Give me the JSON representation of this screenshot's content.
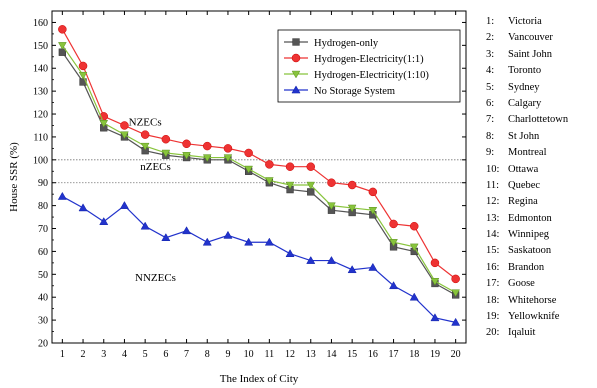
{
  "chart_data": {
    "type": "line",
    "title": "",
    "xlabel": "The Index of City",
    "ylabel": "House SSR (%)",
    "xlim": [
      0.5,
      20.5
    ],
    "ylim": [
      20,
      165
    ],
    "x": [
      1,
      2,
      3,
      4,
      5,
      6,
      7,
      8,
      9,
      10,
      11,
      12,
      13,
      14,
      15,
      16,
      17,
      18,
      19,
      20
    ],
    "x_ticks": [
      "1",
      "2",
      "3",
      "4",
      "5",
      "6",
      "7",
      "8",
      "9",
      "10",
      "11",
      "12",
      "13",
      "14",
      "15",
      "16",
      "17",
      "18",
      "19",
      "20"
    ],
    "y_ticks": [
      "20",
      "30",
      "40",
      "50",
      "60",
      "70",
      "80",
      "90",
      "100",
      "110",
      "120",
      "130",
      "140",
      "150",
      "160"
    ],
    "legend_position": "top-right",
    "series": [
      {
        "name": "Hydrogen-only",
        "color": "#555555",
        "marker": "square",
        "values": [
          147,
          134,
          114,
          110,
          104,
          102,
          101,
          100,
          100,
          95,
          90,
          87,
          86,
          78,
          77,
          76,
          62,
          60,
          46,
          41
        ]
      },
      {
        "name": "Hydrogen-Electricity(1:1)",
        "color": "#ee3333",
        "marker": "circle",
        "values": [
          157,
          141,
          119,
          115,
          111,
          109,
          107,
          106,
          105,
          103,
          98,
          97,
          97,
          90,
          89,
          86,
          72,
          71,
          55,
          48
        ]
      },
      {
        "name": "Hydrogen-Electricity(1:10)",
        "color": "#88c43c",
        "marker": "triangle-down",
        "values": [
          150,
          137,
          116,
          111,
          106,
          103,
          102,
          101,
          101,
          96,
          91,
          89,
          89,
          80,
          79,
          78,
          64,
          62,
          47,
          42
        ]
      },
      {
        "name": "No Storage System",
        "color": "#2233cc",
        "marker": "triangle-up",
        "values": [
          84,
          79,
          73,
          80,
          71,
          66,
          69,
          64,
          67,
          64,
          64,
          59,
          56,
          56,
          52,
          53,
          45,
          40,
          31,
          29
        ]
      }
    ],
    "threshold_lines": [
      100,
      90
    ],
    "region_labels": {
      "top": "NZECs",
      "middle": "nZECs",
      "bottom": "NNZECs"
    }
  },
  "cities": [
    {
      "num": "1:",
      "name": "Victoria"
    },
    {
      "num": "2:",
      "name": "Vancouver"
    },
    {
      "num": "3:",
      "name": "Saint John"
    },
    {
      "num": "4:",
      "name": "Toronto"
    },
    {
      "num": "5:",
      "name": "Sydney"
    },
    {
      "num": "6:",
      "name": "Calgary"
    },
    {
      "num": "7:",
      "name": "Charlottetown"
    },
    {
      "num": "8:",
      "name": "St John"
    },
    {
      "num": "9:",
      "name": "Montreal"
    },
    {
      "num": "10:",
      "name": "Ottawa"
    },
    {
      "num": "11:",
      "name": "Quebec"
    },
    {
      "num": "12:",
      "name": "Regina"
    },
    {
      "num": "13:",
      "name": "Edmonton"
    },
    {
      "num": "14:",
      "name": "Winnipeg"
    },
    {
      "num": "15:",
      "name": "Saskatoon"
    },
    {
      "num": "16:",
      "name": "Brandon"
    },
    {
      "num": "17:",
      "name": "Goose"
    },
    {
      "num": "18:",
      "name": "Whitehorse"
    },
    {
      "num": "19:",
      "name": "Yellowknife"
    },
    {
      "num": "20:",
      "name": "Iqaluit"
    }
  ]
}
